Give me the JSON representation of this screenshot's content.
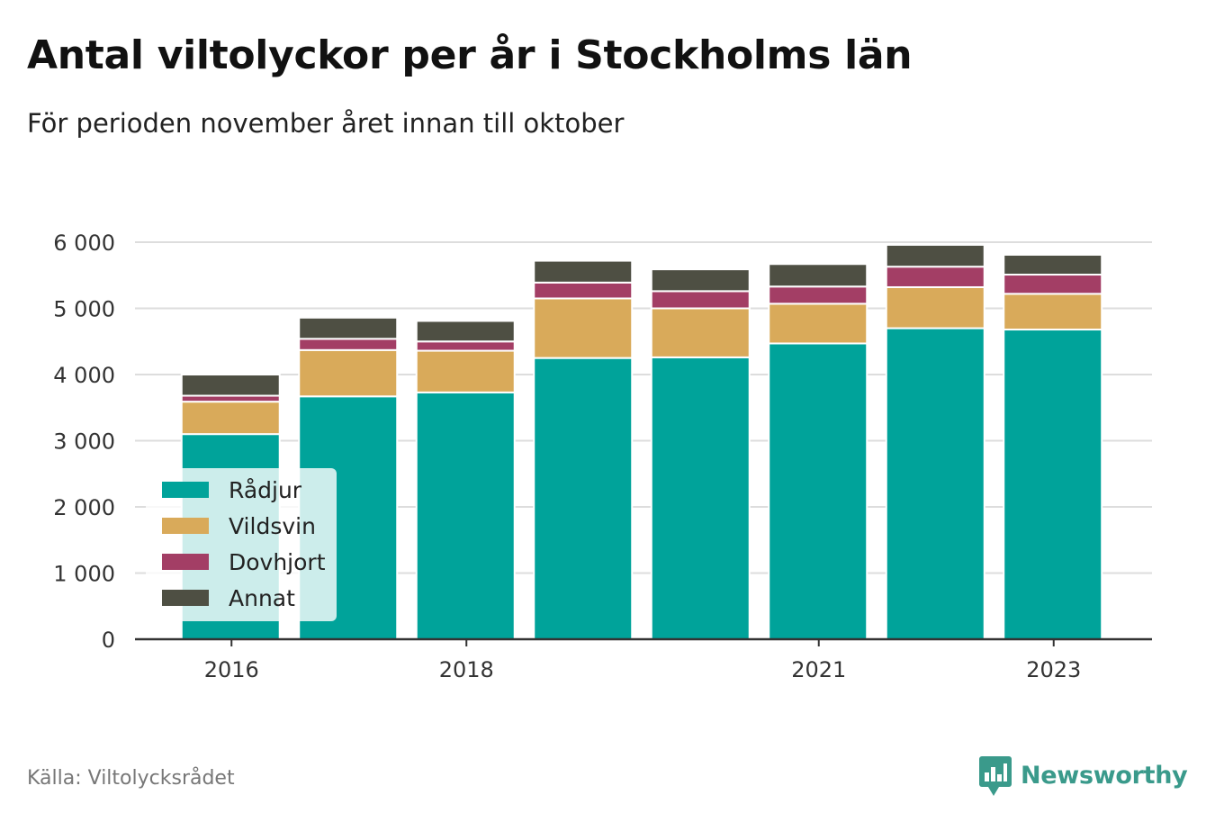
{
  "header": {
    "title": "Antal viltolyckor per år i Stockholms län",
    "subtitle": "För perioden november året innan till oktober"
  },
  "footer": {
    "source": "Källa: Viltolycksrådet",
    "brand": "Newsworthy"
  },
  "colors": {
    "Rådjur": "#00a39a",
    "Vildsvin": "#d9aa5a",
    "Dovhjort": "#a33e65",
    "Annat": "#4e4f43",
    "grid": "#dddddd",
    "axis": "#333333",
    "brand": "#3a9a8b"
  },
  "chart_data": {
    "type": "bar",
    "stacked": true,
    "categories": [
      "2016",
      "2017",
      "2018",
      "2019",
      "2020",
      "2021",
      "2022",
      "2023"
    ],
    "xtick_labels": [
      "2016",
      "2018",
      "2021",
      "2023"
    ],
    "yticks": [
      0,
      1000,
      2000,
      3000,
      4000,
      5000,
      6000
    ],
    "ytick_labels": [
      "0",
      "1 000",
      "2 000",
      "3 000",
      "4 000",
      "5 000",
      "6 000"
    ],
    "ylim": [
      0,
      6000
    ],
    "grid": true,
    "legend_position": "bottom-left",
    "series": [
      {
        "name": "Rådjur",
        "values": [
          3100,
          3670,
          3730,
          4250,
          4260,
          4470,
          4700,
          4680
        ]
      },
      {
        "name": "Vildsvin",
        "values": [
          490,
          700,
          630,
          900,
          740,
          600,
          620,
          540
        ]
      },
      {
        "name": "Dovhjort",
        "values": [
          90,
          170,
          140,
          240,
          260,
          260,
          310,
          290
        ]
      },
      {
        "name": "Annat",
        "values": [
          320,
          320,
          310,
          330,
          330,
          340,
          330,
          300
        ]
      }
    ]
  }
}
